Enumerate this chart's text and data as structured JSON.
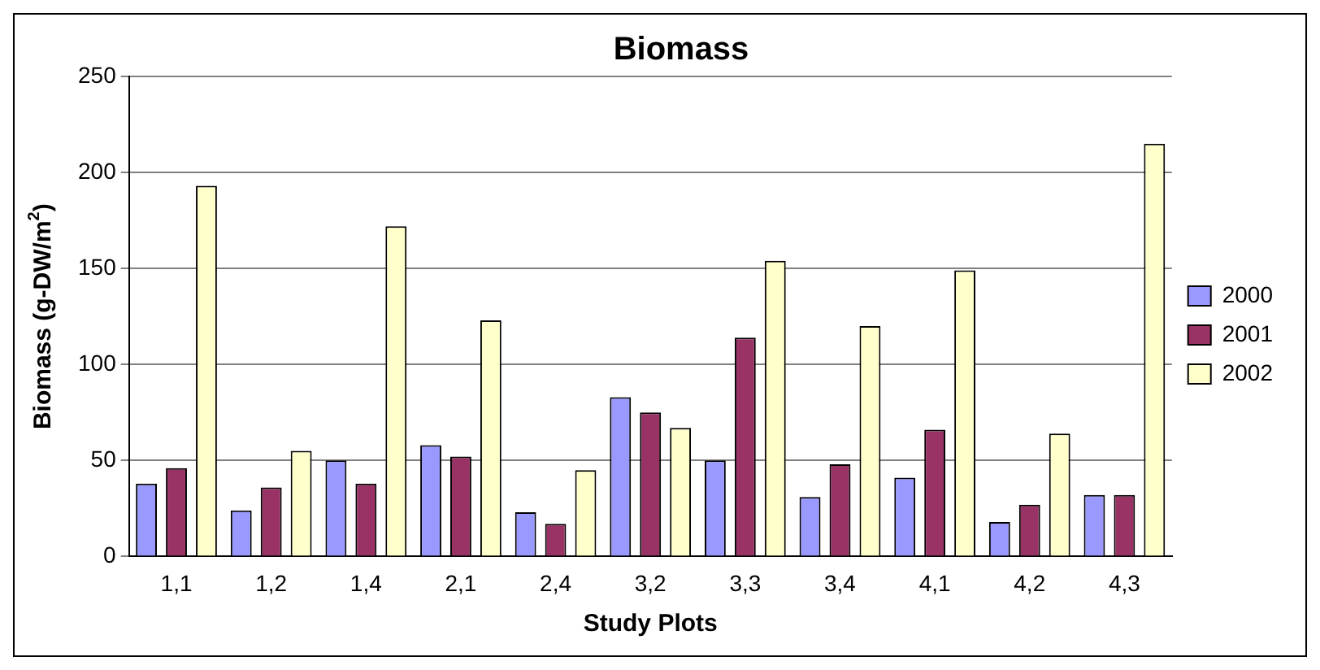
{
  "chart_data": {
    "type": "bar",
    "title": "Biomass",
    "xlabel": "Study Plots",
    "ylabel": "Biomass (g-DW/m$^{2}$)",
    "categories": [
      "1,1",
      "1,2",
      "1,4",
      "2,1",
      "2,4",
      "3,2",
      "3,3",
      "3,4",
      "4,1",
      "4,2",
      "4,3"
    ],
    "series": [
      {
        "name": "2000",
        "color": "#9999ff",
        "values": [
          38,
          24,
          50,
          58,
          23,
          83,
          50,
          31,
          41,
          18,
          32
        ]
      },
      {
        "name": "2001",
        "color": "#993366",
        "values": [
          46,
          36,
          38,
          52,
          17,
          75,
          114,
          48,
          66,
          27,
          32
        ]
      },
      {
        "name": "2002",
        "color": "#ffffcc",
        "values": [
          193,
          55,
          172,
          123,
          45,
          67,
          154,
          120,
          149,
          64,
          215
        ]
      }
    ],
    "ylim": [
      0,
      250
    ],
    "yticks": [
      0,
      50,
      100,
      150,
      200,
      250
    ],
    "grid": "y",
    "legend": "right"
  }
}
